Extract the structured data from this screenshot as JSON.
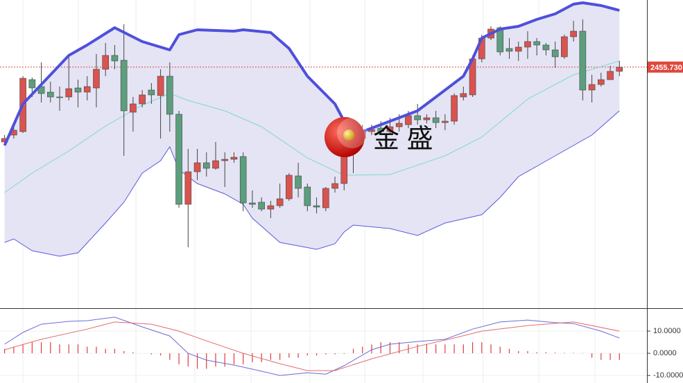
{
  "chart_data": [
    {
      "type": "candlestick",
      "xlim": [
        -0.5,
        70
      ],
      "ylim": [
        2386.1,
        2475.1
      ],
      "x": [
        0,
        1,
        2,
        3,
        4,
        5,
        6,
        7,
        8,
        9,
        10,
        11,
        12,
        13,
        14,
        15,
        16,
        17,
        18,
        19,
        20,
        21,
        22,
        23,
        24,
        25,
        26,
        27,
        28,
        29,
        30,
        31,
        32,
        33,
        34,
        35,
        36,
        37,
        38,
        39,
        40,
        41,
        42,
        43,
        44,
        45,
        46,
        47,
        48,
        49,
        50,
        51,
        52,
        53,
        54,
        55,
        56,
        57,
        58,
        59,
        60,
        61,
        62,
        63,
        64,
        65,
        66,
        67
      ],
      "open": [
        2434.1,
        2436.1,
        2437.1,
        2452.1,
        2450.1,
        2448.5,
        2447.1,
        2447.1,
        2449.7,
        2448.5,
        2449.7,
        2455.1,
        2459.1,
        2457.7,
        2442.7,
        2445.1,
        2449.1,
        2447.5,
        2453.1,
        2442.1,
        2416.1,
        2425.5,
        2428.1,
        2426.5,
        2428.7,
        2429.1,
        2429.9,
        2416.5,
        2416.7,
        2414.7,
        2415.7,
        2417.7,
        2424.3,
        2421.1,
        2415.7,
        2415.1,
        2420.7,
        2422.1,
        2433.1,
        2435.1,
        2437.1,
        2438.1,
        2437.1,
        2438.5,
        2439.1,
        2441.7,
        2440.5,
        2441.1,
        2439.7,
        2440.1,
        2447.1,
        2447.7,
        2458.1,
        2464.1,
        2467.1,
        2461.1,
        2460.3,
        2461.5,
        2463.1,
        2462.1,
        2460.7,
        2458.7,
        2464.5,
        2466.1,
        2449.1,
        2450.7,
        2452.1,
        2454.5
      ],
      "high": [
        2436.1,
        2438.5,
        2453.1,
        2452.7,
        2457.1,
        2451.5,
        2450.1,
        2459.1,
        2452.1,
        2453.1,
        2459.5,
        2462.7,
        2462.1,
        2468.1,
        2447.1,
        2449.1,
        2451.1,
        2455.1,
        2457.1,
        2443.1,
        2432.1,
        2432.1,
        2431.1,
        2434.1,
        2431.1,
        2431.1,
        2431.1,
        2420.1,
        2418.1,
        2417.1,
        2422.1,
        2425.1,
        2428.1,
        2422.1,
        2418.1,
        2421.1,
        2424.1,
        2435.1,
        2437.1,
        2439.1,
        2439.1,
        2440.1,
        2441.1,
        2442.1,
        2443.1,
        2445.1,
        2442.1,
        2443.1,
        2442.1,
        2448.1,
        2450.1,
        2459.1,
        2465.1,
        2467.5,
        2467.5,
        2464.1,
        2463.1,
        2466.1,
        2464.1,
        2462.7,
        2463.1,
        2465.1,
        2469.1,
        2469.5,
        2453.5,
        2454.1,
        2456.1,
        2457.5
      ],
      "low": [
        2433.1,
        2435.1,
        2436.7,
        2447.1,
        2445.5,
        2445.5,
        2443.1,
        2446.1,
        2444.1,
        2446.1,
        2444.1,
        2453.1,
        2455.1,
        2430.1,
        2437.1,
        2444.1,
        2445.1,
        2435.1,
        2437.1,
        2415.1,
        2403.7,
        2423.1,
        2424.1,
        2426.1,
        2421.1,
        2428.1,
        2414.1,
        2415.1,
        2414.1,
        2412.1,
        2415.1,
        2417.1,
        2418.1,
        2414.1,
        2413.5,
        2414.1,
        2419.5,
        2420.1,
        2425.1,
        2433.1,
        2436.1,
        2436.1,
        2436.1,
        2437.1,
        2438.1,
        2439.1,
        2439.5,
        2438.1,
        2437.5,
        2439.1,
        2446.1,
        2447.1,
        2457.1,
        2463.5,
        2459.1,
        2458.1,
        2457.5,
        2458.1,
        2459.1,
        2459.1,
        2455.5,
        2458.1,
        2463.1,
        2446.1,
        2445.5,
        2450.1,
        2452.1,
        2453.1
      ],
      "close": [
        2435.1,
        2437.5,
        2452.5,
        2449.7,
        2448.1,
        2447.1,
        2446.9,
        2449.5,
        2448.5,
        2450.1,
        2455.1,
        2459.1,
        2457.5,
        2443.1,
        2445.1,
        2447.7,
        2447.7,
        2453.1,
        2442.1,
        2416.1,
        2425.5,
        2428.1,
        2426.5,
        2428.7,
        2429.1,
        2429.7,
        2416.5,
        2416.1,
        2414.7,
        2415.7,
        2417.7,
        2424.5,
        2420.7,
        2415.7,
        2415.3,
        2420.7,
        2422.1,
        2433.5,
        2435.5,
        2437.5,
        2437.7,
        2437.1,
        2438.5,
        2439.5,
        2441.7,
        2440.5,
        2441.1,
        2439.7,
        2440.1,
        2447.5,
        2448.1,
        2458.1,
        2464.1,
        2466.7,
        2460.1,
        2460.3,
        2461.5,
        2463.1,
        2462.1,
        2460.7,
        2458.7,
        2464.5,
        2466.1,
        2449.1,
        2450.7,
        2452.1,
        2454.5,
        2455.7
      ],
      "up_color": "#d9534f",
      "down_color": "#5c9e7d",
      "overlays": [
        {
          "color": "#4f4fdc",
          "width": 4,
          "x": [
            0,
            2,
            7,
            9,
            12,
            15,
            18,
            19,
            21,
            25,
            26,
            29,
            31,
            33,
            36,
            37,
            38,
            39,
            42,
            45,
            48,
            50,
            51,
            52,
            54,
            56,
            58,
            60,
            62,
            63,
            65,
            67
          ],
          "values": [
            2433.1,
            2445.1,
            2459.1,
            2462.1,
            2467.1,
            2463.1,
            2460.7,
            2465.1,
            2466.5,
            2466.1,
            2466.5,
            2465.7,
            2461.1,
            2453.1,
            2445.1,
            2440.1,
            2434.5,
            2437.1,
            2440.1,
            2443.1,
            2449.1,
            2453.1,
            2458.1,
            2464.1,
            2466.7,
            2467.5,
            2469.5,
            2471.1,
            2473.9,
            2474.3,
            2473.5,
            2472.1
          ]
        },
        {
          "color": "#80d8c8",
          "width": 1,
          "x": [
            0,
            3,
            7,
            11,
            15,
            18,
            20,
            24,
            28,
            33,
            37,
            42,
            48,
            52,
            57,
            62,
            67
          ],
          "values": [
            2419.5,
            2425.1,
            2431.5,
            2438.7,
            2444.7,
            2448.1,
            2446.1,
            2443.1,
            2438.5,
            2429.5,
            2424.5,
            2424.7,
            2430.1,
            2435.5,
            2446.5,
            2453.5,
            2457.5
          ]
        },
        {
          "color": "#5a5ae0",
          "width": 1,
          "x": [
            0,
            1,
            3,
            6,
            8,
            11,
            13,
            15,
            17,
            18,
            19,
            21,
            24,
            26,
            27,
            30,
            32,
            34,
            36,
            37,
            38,
            42,
            45,
            48,
            52,
            54,
            56,
            60,
            64,
            67
          ],
          "values": [
            2405.1,
            2406.1,
            2402.7,
            2401.1,
            2402.1,
            2410.7,
            2416.7,
            2425.1,
            2428.7,
            2432.7,
            2426.1,
            2422.1,
            2419.1,
            2416.1,
            2412.1,
            2405.1,
            2404.1,
            2403.1,
            2404.7,
            2408.1,
            2410.1,
            2409.1,
            2407.1,
            2410.7,
            2413.1,
            2418.1,
            2424.1,
            2430.1,
            2436.1,
            2443.1
          ]
        }
      ],
      "band_fill": "#e4e4f4",
      "last_price": 2455.73,
      "last_price_label": "2455.730",
      "last_price_color": "#e0473c",
      "watermark": "金 盛"
    },
    {
      "type": "macd",
      "xlim": [
        -0.5,
        70
      ],
      "ylim": [
        -13.4,
        19.7
      ],
      "yticks": [
        {
          "value": 10,
          "label": "10.0000"
        },
        {
          "value": 0,
          "label": "0.0000"
        },
        {
          "value": -10,
          "label": "-10.0000"
        }
      ],
      "lines": [
        {
          "color": "#6a6ad8",
          "x": [
            0,
            2,
            4,
            7,
            9,
            12,
            15,
            18,
            20,
            22,
            25,
            28,
            30,
            33,
            35,
            37,
            40,
            42,
            45,
            48,
            51,
            54,
            57,
            60,
            62,
            65,
            67
          ],
          "values": [
            4.1,
            9.4,
            13.1,
            14.4,
            14.7,
            16.3,
            11.9,
            7.8,
            0,
            -3.1,
            -5.3,
            -8.1,
            -10.0,
            -8.8,
            -9.4,
            -5.6,
            1.6,
            4.1,
            5.3,
            6.3,
            10.9,
            14.1,
            15.0,
            13.8,
            13.4,
            10.0,
            6.9
          ]
        },
        {
          "color": "#e86a6a",
          "x": [
            0,
            4,
            9,
            12,
            16,
            19,
            22,
            26,
            30,
            33,
            36,
            40,
            45,
            49,
            52,
            57,
            62,
            67
          ],
          "values": [
            1.6,
            6.3,
            10.9,
            14.1,
            13.1,
            10.0,
            5.6,
            0,
            -4.7,
            -7.8,
            -7.8,
            -2.5,
            3.1,
            6.9,
            10.0,
            12.5,
            14.1,
            10.0
          ]
        }
      ],
      "histogram": {
        "color": "#e23a3a",
        "values": [
          2,
          3,
          4,
          5,
          5,
          5,
          4,
          4,
          4,
          3,
          3,
          2,
          2,
          1,
          0.5,
          0,
          -0.5,
          -1,
          -3,
          -5,
          -6,
          -7,
          -7,
          -6,
          -6,
          -5,
          -5,
          -4,
          -4,
          -3,
          -3,
          -2,
          -2,
          -1,
          -1,
          -0.5,
          -0.5,
          -0.3,
          2,
          3,
          4,
          5,
          5,
          5,
          4,
          4,
          4,
          4,
          4,
          4,
          4,
          5,
          5,
          4,
          3,
          2,
          1,
          1,
          0.5,
          0.5,
          0.3,
          0.2,
          0.2,
          0.1,
          -2,
          -3,
          -3,
          -3
        ]
      }
    }
  ]
}
